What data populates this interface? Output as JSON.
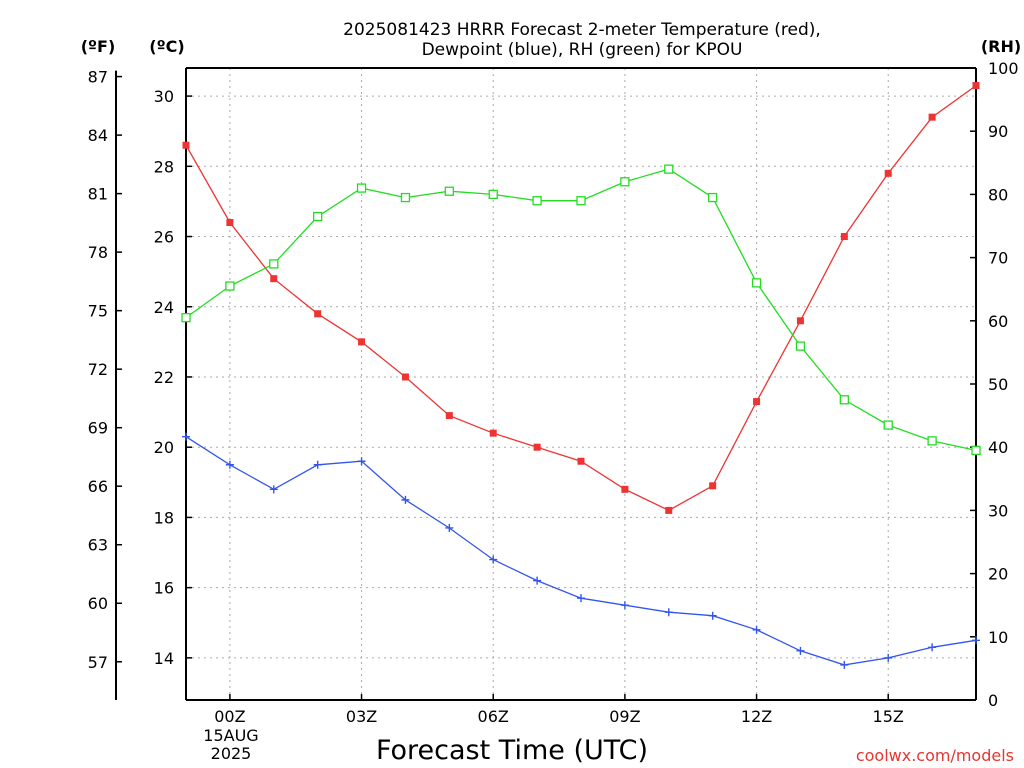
{
  "title": {
    "line1": "2025081423 HRRR Forecast 2-meter Temperature (red),",
    "line2": "Dewpoint (blue), RH (green) for KPOU"
  },
  "units": {
    "fahrenheit": "(ºF)",
    "celsius": "(ºC)",
    "rh": "(RH)"
  },
  "xlabel": "Forecast Time (UTC)",
  "credit": "coolwx.com/models",
  "date_label": {
    "day": "15AUG",
    "year": "2025"
  },
  "colors": {
    "temperature": "#ee3333",
    "dewpoint": "#3355ee",
    "rh": "#22dd22",
    "grid": "#aaaaaa",
    "credit": "#e8352f"
  },
  "chart_data": {
    "type": "line",
    "x_hours": [
      -1,
      0,
      1,
      2,
      3,
      4,
      5,
      6,
      7,
      8,
      9,
      10,
      11,
      12,
      13,
      14,
      15,
      16,
      17
    ],
    "x_ticks": [
      {
        "hour": 0,
        "label": "00Z"
      },
      {
        "hour": 3,
        "label": "03Z"
      },
      {
        "hour": 6,
        "label": "06Z"
      },
      {
        "hour": 9,
        "label": "09Z"
      },
      {
        "hour": 12,
        "label": "12Z"
      },
      {
        "hour": 15,
        "label": "15Z"
      }
    ],
    "xlim": [
      -1,
      17
    ],
    "celsius_axis": {
      "ylim": [
        12.8,
        30.8
      ],
      "ticks": [
        14,
        16,
        18,
        20,
        22,
        24,
        26,
        28,
        30
      ]
    },
    "fahrenheit_axis": {
      "ticks": [
        57,
        60,
        63,
        66,
        69,
        72,
        75,
        78,
        81,
        84,
        87
      ]
    },
    "rh_axis": {
      "ylim": [
        0,
        100
      ],
      "ticks": [
        0,
        10,
        20,
        30,
        40,
        50,
        60,
        70,
        80,
        90,
        100
      ]
    },
    "series": [
      {
        "name": "Temperature",
        "axis": "celsius",
        "marker": "filled-square",
        "values": [
          28.6,
          26.4,
          24.8,
          23.8,
          23.0,
          22.0,
          20.9,
          20.4,
          20.0,
          19.6,
          18.8,
          18.2,
          18.9,
          21.3,
          23.6,
          26.0,
          27.8,
          29.4,
          30.3
        ]
      },
      {
        "name": "Dewpoint",
        "axis": "celsius",
        "marker": "plus",
        "values": [
          20.3,
          19.5,
          18.8,
          19.5,
          19.6,
          18.5,
          17.7,
          16.8,
          16.2,
          15.7,
          15.5,
          15.3,
          15.2,
          14.8,
          14.2,
          13.8,
          14.0,
          14.3,
          14.5
        ]
      },
      {
        "name": "RH",
        "axis": "rh",
        "marker": "open-square",
        "values": [
          60.5,
          65.5,
          69.0,
          76.5,
          81.0,
          79.5,
          80.5,
          80.0,
          79.0,
          79.0,
          82.0,
          84.0,
          79.5,
          66.0,
          56.0,
          47.5,
          43.5,
          41.0,
          39.5
        ]
      }
    ]
  }
}
